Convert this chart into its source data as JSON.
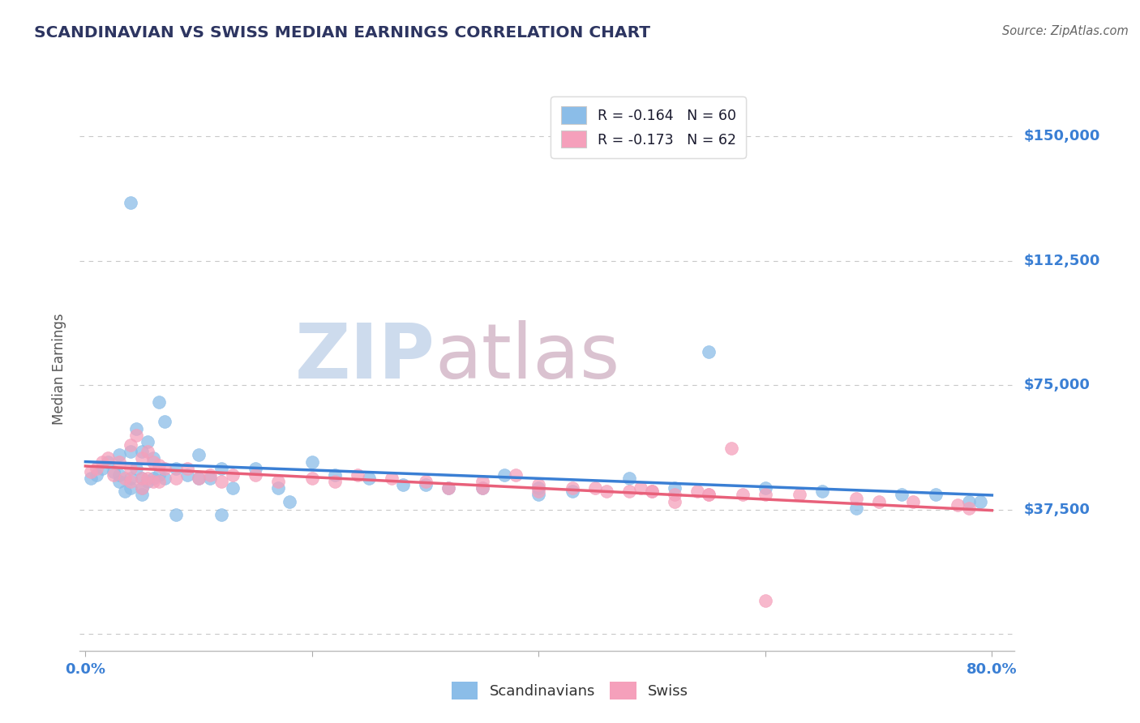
{
  "title": "SCANDINAVIAN VS SWISS MEDIAN EARNINGS CORRELATION CHART",
  "source": "Source: ZipAtlas.com",
  "ylabel": "Median Earnings",
  "xlim": [
    -0.005,
    0.82
  ],
  "ylim": [
    -5000,
    165000
  ],
  "ytick_vals": [
    0,
    37500,
    75000,
    112500,
    150000
  ],
  "ytick_labels": [
    "",
    "$37,500",
    "$75,000",
    "$112,500",
    "$150,000"
  ],
  "xtick_vals": [
    0.0,
    0.2,
    0.4,
    0.6,
    0.8
  ],
  "xtick_labels": [
    "0.0%",
    "",
    "",
    "",
    "80.0%"
  ],
  "background_color": "#ffffff",
  "grid_color": "#c8c8c8",
  "scandinavian_color": "#8bbde8",
  "swiss_color": "#f5a0bb",
  "scandinavian_line_color": "#3a7fd4",
  "swiss_line_color": "#e8607a",
  "legend_line1": "R = -0.164   N = 60",
  "legend_line2": "R = -0.173   N = 62",
  "title_color": "#2d3561",
  "axis_label_color": "#3a7fd4",
  "ytick_color": "#3a7fd4",
  "xtick_color_first": "#3a7fd4",
  "xtick_color_last": "#3a7fd4",
  "watermark_zip_color": "#c5d5ea",
  "watermark_atlas_color": "#d4b8c8",
  "scandinavians_scatter_x": [
    0.005,
    0.01,
    0.015,
    0.02,
    0.025,
    0.03,
    0.03,
    0.03,
    0.035,
    0.04,
    0.04,
    0.04,
    0.04,
    0.045,
    0.045,
    0.05,
    0.05,
    0.05,
    0.05,
    0.055,
    0.055,
    0.06,
    0.06,
    0.065,
    0.065,
    0.07,
    0.07,
    0.08,
    0.09,
    0.1,
    0.11,
    0.12,
    0.13,
    0.15,
    0.17,
    0.2,
    0.22,
    0.25,
    0.28,
    0.32,
    0.37,
    0.4,
    0.43,
    0.48,
    0.52,
    0.55,
    0.6,
    0.65,
    0.68,
    0.72,
    0.75,
    0.78,
    0.79,
    0.12,
    0.18,
    0.3,
    0.35,
    0.4,
    0.1,
    0.08
  ],
  "scandinavians_scatter_y": [
    47000,
    48000,
    50000,
    52000,
    49000,
    54000,
    46000,
    48000,
    43000,
    55000,
    47000,
    44000,
    130000,
    62000,
    50000,
    55000,
    47000,
    44000,
    42000,
    58000,
    46000,
    53000,
    47000,
    70000,
    48000,
    64000,
    47000,
    50000,
    48000,
    54000,
    47000,
    50000,
    44000,
    50000,
    44000,
    52000,
    48000,
    47000,
    45000,
    44000,
    48000,
    44000,
    43000,
    47000,
    44000,
    85000,
    44000,
    43000,
    38000,
    42000,
    42000,
    40000,
    40000,
    36000,
    40000,
    45000,
    44000,
    42000,
    47000,
    36000
  ],
  "swiss_scatter_x": [
    0.005,
    0.01,
    0.015,
    0.02,
    0.025,
    0.03,
    0.035,
    0.04,
    0.04,
    0.04,
    0.045,
    0.05,
    0.05,
    0.05,
    0.055,
    0.055,
    0.06,
    0.06,
    0.065,
    0.065,
    0.07,
    0.08,
    0.09,
    0.1,
    0.11,
    0.12,
    0.13,
    0.15,
    0.17,
    0.2,
    0.22,
    0.24,
    0.27,
    0.3,
    0.32,
    0.35,
    0.38,
    0.4,
    0.43,
    0.46,
    0.49,
    0.52,
    0.54,
    0.57,
    0.6,
    0.63,
    0.68,
    0.7,
    0.73,
    0.77,
    0.78,
    0.48,
    0.5,
    0.55,
    0.58,
    0.6,
    0.35,
    0.4,
    0.45,
    0.5,
    0.52,
    0.55
  ],
  "swiss_scatter_y": [
    49000,
    50000,
    52000,
    53000,
    48000,
    52000,
    47000,
    57000,
    46000,
    50000,
    60000,
    53000,
    47000,
    44000,
    55000,
    47000,
    52000,
    46000,
    51000,
    46000,
    50000,
    47000,
    50000,
    47000,
    48000,
    46000,
    48000,
    48000,
    46000,
    47000,
    46000,
    48000,
    47000,
    46000,
    44000,
    46000,
    48000,
    45000,
    44000,
    43000,
    44000,
    42000,
    43000,
    56000,
    42000,
    42000,
    41000,
    40000,
    40000,
    39000,
    38000,
    43000,
    43000,
    42000,
    42000,
    10000,
    44000,
    43000,
    44000,
    43000,
    40000,
    42000
  ]
}
